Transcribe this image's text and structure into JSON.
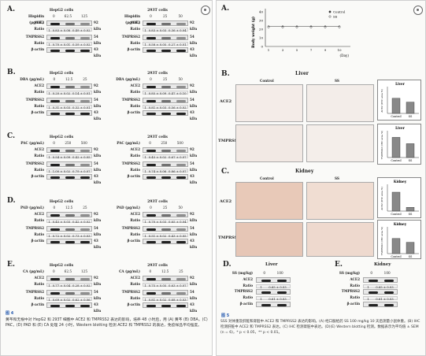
{
  "left": {
    "figure_link": "图 4",
    "caption": "黄芩和无根中对 HepG2 和 293T 细胞中 ACE2 和 TMPRSS2 表达的影响，培养 48 小时后，用 (A) 黄芩 (B) DBA，(C) PAC，(D) PAD 和 (E) CA 处理 24 小时，Western blotting 检测 ACE2 和 TMPRSS2 的表达，免疫样品平均强度。",
    "sections": [
      {
        "letter": "A.",
        "agent": "Hispidin (µg/mL)",
        "hep": {
          "doses": [
            "0",
            "62.5",
            "125"
          ],
          "ace2": [
            "1",
            "0.83 ± 0.08",
            "0.49 ± 0.02"
          ],
          "tmp": [
            "1",
            "0.70 ± 0.01",
            "0.59 ± 0.02"
          ]
        },
        "t293": {
          "doses": [
            "0",
            "25",
            "50"
          ],
          "ace2": [
            "1",
            "0.83 ± 0.03",
            "0.36 ± 0.04"
          ],
          "tmp": [
            "1",
            "0.58 ± 0.05",
            "0.27 ± 0.01"
          ]
        }
      },
      {
        "letter": "B.",
        "agent": "DBA (µg/mL)",
        "hep": {
          "doses": [
            "0",
            "12.5",
            "25"
          ],
          "ace2": [
            "1",
            "0.20 ± 0.02",
            "0.14 ± 0.01"
          ],
          "tmp": [
            "1",
            "0.31 ± 0.03",
            "0.32 ± 0.01"
          ]
        },
        "t293": {
          "doses": [
            "0",
            "25",
            "50"
          ],
          "ace2": [
            "1",
            "0.85 ± 0.09",
            "0.47 ± 0.10"
          ],
          "tmp": [
            "1",
            "0.81 ± 0.03",
            "0.56 ± 0.02"
          ]
        }
      },
      {
        "letter": "C.",
        "agent": "PAC (µg/mL)",
        "hep": {
          "doses": [
            "0",
            "250",
            "500"
          ],
          "ace2": [
            "1",
            "0.54 ± 0.09",
            "0.42 ± 0.05"
          ],
          "tmp": [
            "1",
            "1.00 ± 0.02",
            "0.79 ± 0.07"
          ]
        },
        "t293": {
          "doses": [
            "0",
            "250",
            "500"
          ],
          "ace2": [
            "1",
            "0.45 ± 0.02",
            "0.67 ± 0.07"
          ],
          "tmp": [
            "1",
            "0.74 ± 0.06",
            "0.86 ± 0.07"
          ]
        }
      },
      {
        "letter": "D.",
        "agent": "PAD (µg/mL)",
        "hep": {
          "doses": [
            "0",
            "12.5",
            "25"
          ],
          "ace2": [
            "1",
            "0.45 ± 0.03",
            "0.42 ± 0.02"
          ],
          "tmp": [
            "1",
            "0.72 ± 0.02",
            "0.73 ± 0.03"
          ]
        },
        "t293": {
          "doses": [
            "0",
            "25",
            "50"
          ],
          "ace2": [
            "1",
            "0.70 ± 0.03",
            "0.65 ± 0.04"
          ],
          "tmp": [
            "1",
            "0.51 ± 0.02",
            "0.43 ± 0.05"
          ]
        }
      },
      {
        "letter": "E.",
        "agent": "CA (µg/mL)",
        "hep": {
          "doses": [
            "0",
            "62.5",
            "125"
          ],
          "ace2": [
            "1",
            "0.77 ± 0.04",
            "0.28 ± 0.02"
          ],
          "tmp": [
            "1",
            "0.69 ± 0.02",
            "0.62 ± 0.06"
          ]
        },
        "t293": {
          "doses": [
            "0",
            "12.5",
            "25"
          ],
          "ace2": [
            "1",
            "0.75 ± 0.05",
            "0.63 ± 0.07"
          ],
          "tmp": [
            "1",
            "0.81 ± 0.02",
            "0.68 ± 0.03"
          ]
        }
      }
    ],
    "labels": {
      "hepg2": "HepG2 cells",
      "t293": "293T cells",
      "ace2": "ACE2",
      "tmprss2": "TMPRSS2",
      "ratio": "Ratio",
      "bactin": "β-actin",
      "kda92": "92 kDa",
      "kda54": "54 kDa",
      "kda43": "43 kDa"
    }
  },
  "right": {
    "figure_link": "图 5",
    "caption": "SSS 对体重及肝脏和肾脏中 ACE2 和 TMPRSS2 表达的影响。(A) 经口服给药 SS 100 mg/kg 10 天后测量小鼠体重。(B) IHC 检测肝脏中 ACE2 和 TMPRSS2 表达。(C) IHC 检测肾脏中表达。(D)(E) Western blotting 检测。数据表示为平均值 ± SEM (n = 6)，* p < 0.05，** p < 0.01。",
    "chart_a": {
      "ylabel": "Body weight (g)",
      "xlabel": "(Day)",
      "xticks": [
        "1",
        "3",
        "5",
        "7",
        "9",
        "10"
      ],
      "yticks": [
        "0",
        "10",
        "20",
        "30",
        "40"
      ],
      "legend": [
        "Control",
        "SS"
      ]
    },
    "b_label": "B.",
    "b_title": "Liver",
    "c_label": "C.",
    "c_title": "Kidney",
    "d_label": "D.",
    "d_title": "Liver",
    "e_label": "E.",
    "e_title": "Kidney",
    "control": "Control",
    "ss": "SS",
    "ace2": "ACE2",
    "tmprss2": "TMPRSS2",
    "ratio": "Ratio",
    "bactin": "β-actin",
    "ss_mgkg": "SS (mg/kg)",
    "d_doses": [
      "0",
      "100"
    ],
    "d_ratio": [
      "1",
      "0.65 ± 0.03",
      "1",
      "0.61 ± 0.03"
    ],
    "chart_liver_ace2": {
      "title": "Liver",
      "ylabel": "ACE2 (IHC area %)",
      "categories": [
        "Control",
        "SS"
      ],
      "values": [
        12,
        9
      ]
    },
    "chart_liver_tmp": {
      "title": "Liver",
      "ylabel": "TMPRSS2 (IHC area %)",
      "categories": [
        "Control",
        "SS"
      ],
      "values": [
        16,
        11
      ]
    },
    "chart_kidney_ace2": {
      "title": "Kidney",
      "ylabel": "ACE2 (IHC area %)",
      "categories": [
        "Control",
        "SS"
      ],
      "values": [
        30,
        6
      ]
    },
    "chart_kidney_tmp": {
      "title": "Kidney",
      "ylabel": "TMPRSS2 (IHC area %)",
      "categories": [
        "Control",
        "SS"
      ],
      "values": [
        24,
        18
      ]
    }
  }
}
